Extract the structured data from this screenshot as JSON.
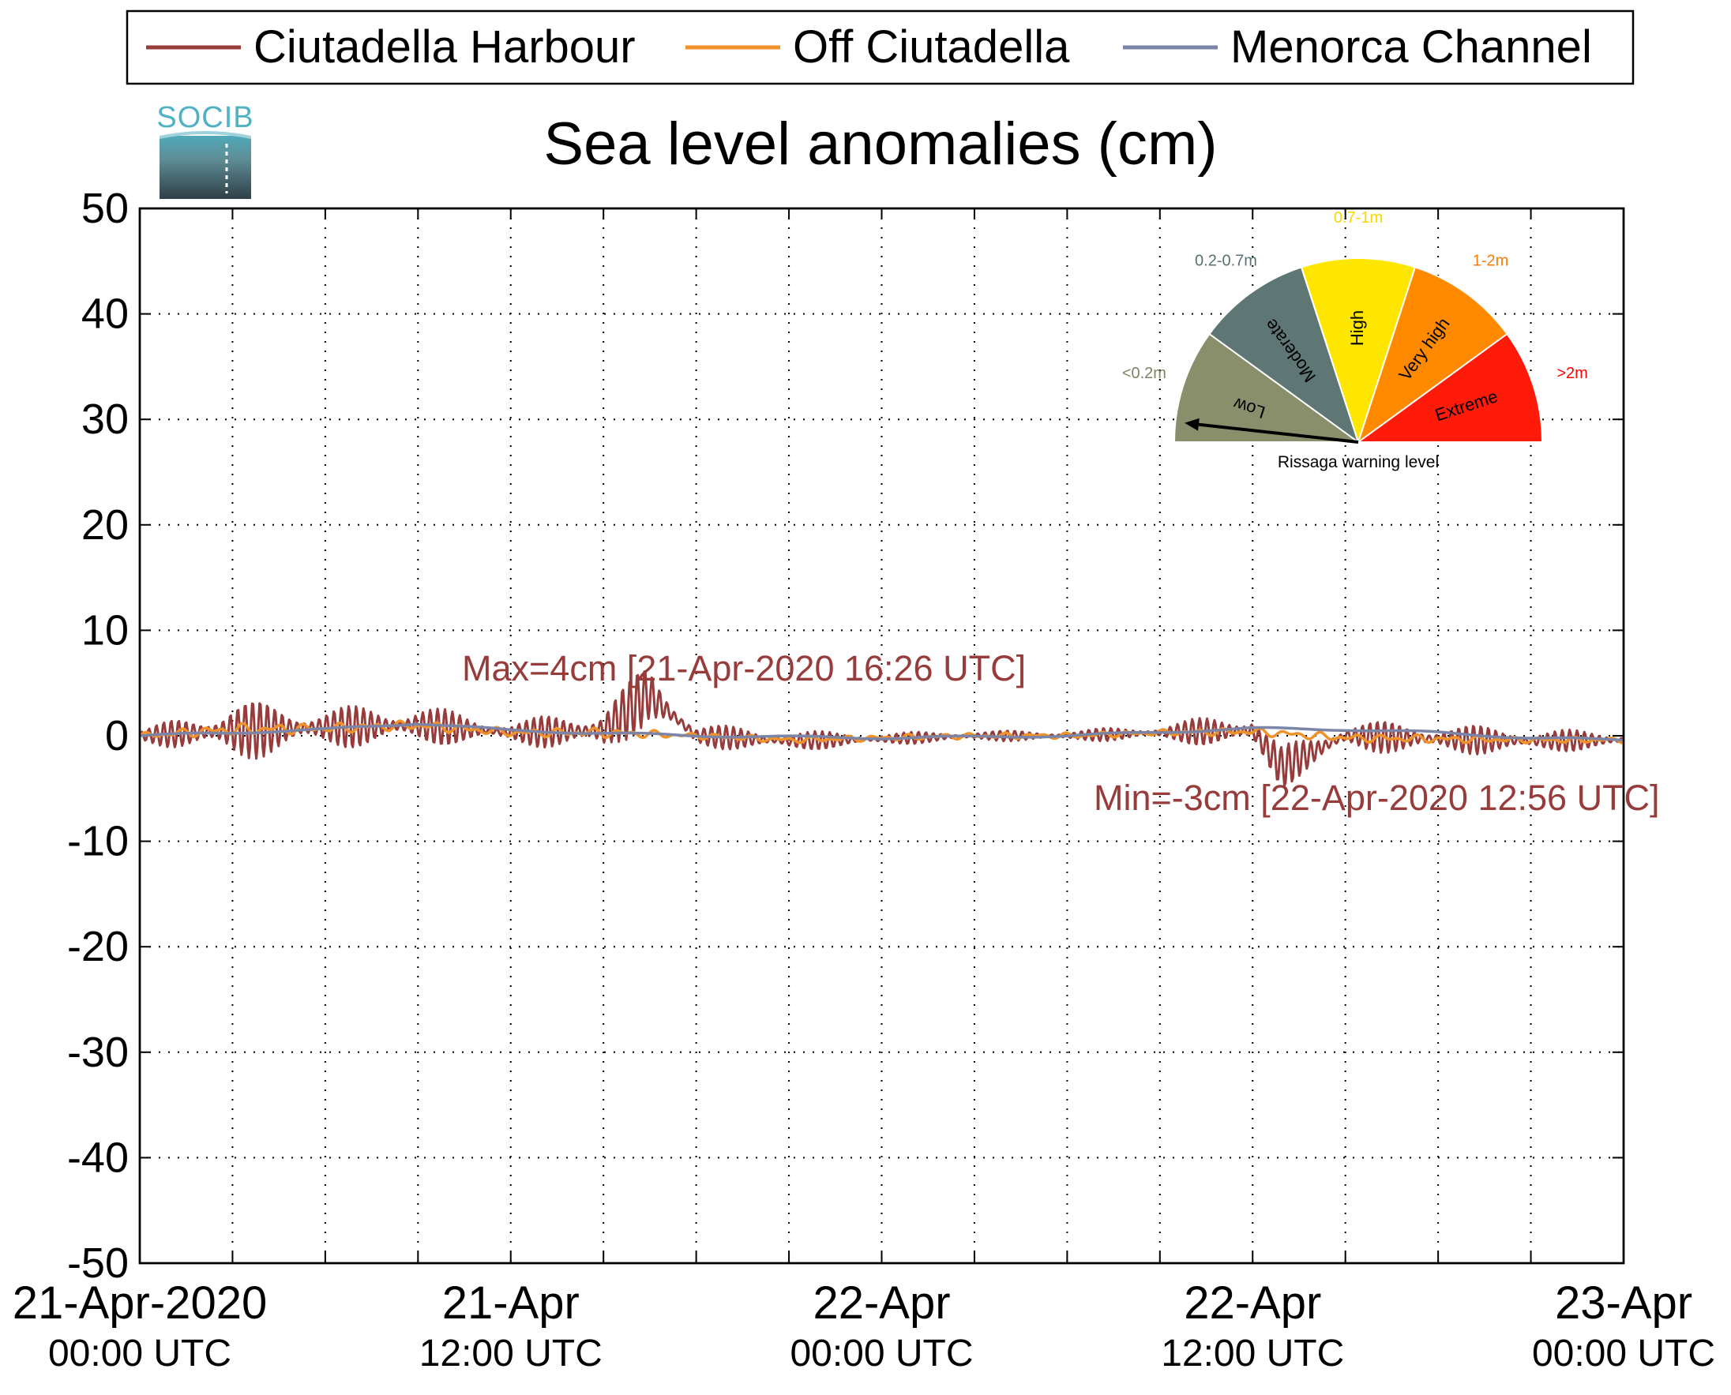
{
  "chart_data": {
    "type": "line",
    "title": "Sea level anomalies (cm)",
    "xlabel": "",
    "ylabel": "",
    "ylim": [
      -50,
      50
    ],
    "yticks": [
      50,
      40,
      30,
      20,
      10,
      0,
      -10,
      -20,
      -30,
      -40,
      -50
    ],
    "ytick_labels": [
      "50",
      "40",
      "30",
      "20",
      "10",
      "0",
      "-10",
      "-20",
      "-30",
      "-40",
      "-50"
    ],
    "xlim": [
      "2020-04-21 00:00",
      "2020-04-23 00:00"
    ],
    "x_unit": "UTC",
    "xticks": [
      {
        "x": "2020-04-21 00:00",
        "label1": "21-Apr-2020",
        "label2": "00:00 UTC"
      },
      {
        "x": "2020-04-21 12:00",
        "label1": "21-Apr",
        "label2": "12:00 UTC"
      },
      {
        "x": "2020-04-22 00:00",
        "label1": "22-Apr",
        "label2": "00:00 UTC"
      },
      {
        "x": "2020-04-22 12:00",
        "label1": "22-Apr",
        "label2": "12:00 UTC"
      },
      {
        "x": "2020-04-23 00:00",
        "label1": "23-Apr",
        "label2": "00:00 UTC"
      }
    ],
    "grid": true,
    "legend_position": "top",
    "series": [
      {
        "name": "Ciutadella Harbour",
        "color": "#973b3b",
        "x": [
          "2020-04-21 00:00",
          "2020-04-21 03:00",
          "2020-04-21 06:00",
          "2020-04-21 09:00",
          "2020-04-21 12:00",
          "2020-04-21 15:00",
          "2020-04-21 16:26",
          "2020-04-21 18:00",
          "2020-04-21 21:00",
          "2020-04-22 00:00",
          "2020-04-22 03:00",
          "2020-04-22 06:00",
          "2020-04-22 09:00",
          "2020-04-22 12:00",
          "2020-04-22 12:56",
          "2020-04-22 15:00",
          "2020-04-22 18:00",
          "2020-04-22 21:00",
          "2020-04-23 00:00"
        ],
        "values": [
          0.0,
          0.5,
          0.8,
          1.0,
          0.3,
          0.5,
          4.0,
          0.0,
          -0.5,
          -0.3,
          0.0,
          0.0,
          0.3,
          0.5,
          -3.0,
          0.0,
          -0.3,
          -0.5,
          -0.4
        ],
        "oscillation_amplitude": [
          0.5,
          3.0,
          2.0,
          2.0,
          1.0,
          2.5,
          3.0,
          1.2,
          1.0,
          0.6,
          0.5,
          0.5,
          0.8,
          2.0,
          2.0,
          1.5,
          1.5,
          1.2,
          0.8
        ]
      },
      {
        "name": "Off Ciutadella",
        "color": "#f0922a",
        "x": [
          "2020-04-21 00:00",
          "2020-04-21 03:00",
          "2020-04-21 06:00",
          "2020-04-21 09:00",
          "2020-04-21 12:00",
          "2020-04-21 15:00",
          "2020-04-21 18:00",
          "2020-04-21 21:00",
          "2020-04-22 00:00",
          "2020-04-22 03:00",
          "2020-04-22 06:00",
          "2020-04-22 09:00",
          "2020-04-22 12:00",
          "2020-04-22 15:00",
          "2020-04-22 18:00",
          "2020-04-22 21:00",
          "2020-04-23 00:00"
        ],
        "values": [
          0.0,
          0.6,
          0.7,
          1.0,
          0.3,
          0.3,
          0.0,
          -0.4,
          -0.2,
          0.0,
          0.0,
          0.3,
          0.4,
          -0.2,
          -0.3,
          -0.4,
          -0.4
        ],
        "oscillation_amplitude": [
          0.3,
          0.6,
          0.5,
          0.5,
          0.4,
          0.5,
          0.3,
          0.3,
          0.3,
          0.3,
          0.3,
          0.3,
          0.4,
          0.4,
          0.4,
          0.3,
          0.3
        ]
      },
      {
        "name": "Menorca Channel",
        "color": "#7a85a8",
        "x": [
          "2020-04-21 00:00",
          "2020-04-21 06:00",
          "2020-04-21 09:00",
          "2020-04-21 12:00",
          "2020-04-21 18:00",
          "2020-04-22 00:00",
          "2020-04-22 06:00",
          "2020-04-22 12:00",
          "2020-04-22 15:00",
          "2020-04-22 18:00",
          "2020-04-22 21:00",
          "2020-04-23 00:00"
        ],
        "values": [
          0.0,
          0.6,
          1.2,
          0.5,
          0.0,
          -0.2,
          0.0,
          0.7,
          0.6,
          0.3,
          -0.2,
          -0.4
        ],
        "oscillation_amplitude": [
          0.1,
          0.1,
          0.1,
          0.1,
          0.1,
          0.1,
          0.1,
          0.1,
          0.1,
          0.1,
          0.1,
          0.1
        ]
      }
    ],
    "annotations": [
      {
        "text": "Max=4cm [21-Apr-2020 16:26 UTC]",
        "color": "#973b3b"
      },
      {
        "text": "Min=-3cm [22-Apr-2020 12:56 UTC]",
        "color": "#973b3b"
      }
    ]
  },
  "logo": {
    "text": "SOCIB"
  },
  "gauge": {
    "title": "Rissaga warning level",
    "needle_level": "Low",
    "sectors": [
      {
        "name": "Low",
        "range": "<0.2m",
        "color": "#8a8f6b",
        "range_color": "#7e8461"
      },
      {
        "name": "Moderate",
        "range": "0.2-0.7m",
        "color": "#5e7775",
        "range_color": "#557170"
      },
      {
        "name": "High",
        "range": "0.7-1m",
        "color": "#ffe600",
        "range_color": "#f5d800"
      },
      {
        "name": "Very high",
        "range": "1-2m",
        "color": "#ff8a00",
        "range_color": "#ff7a00"
      },
      {
        "name": "Extreme",
        "range": ">2m",
        "color": "#ff1a0a",
        "range_color": "#ff0000"
      }
    ]
  }
}
